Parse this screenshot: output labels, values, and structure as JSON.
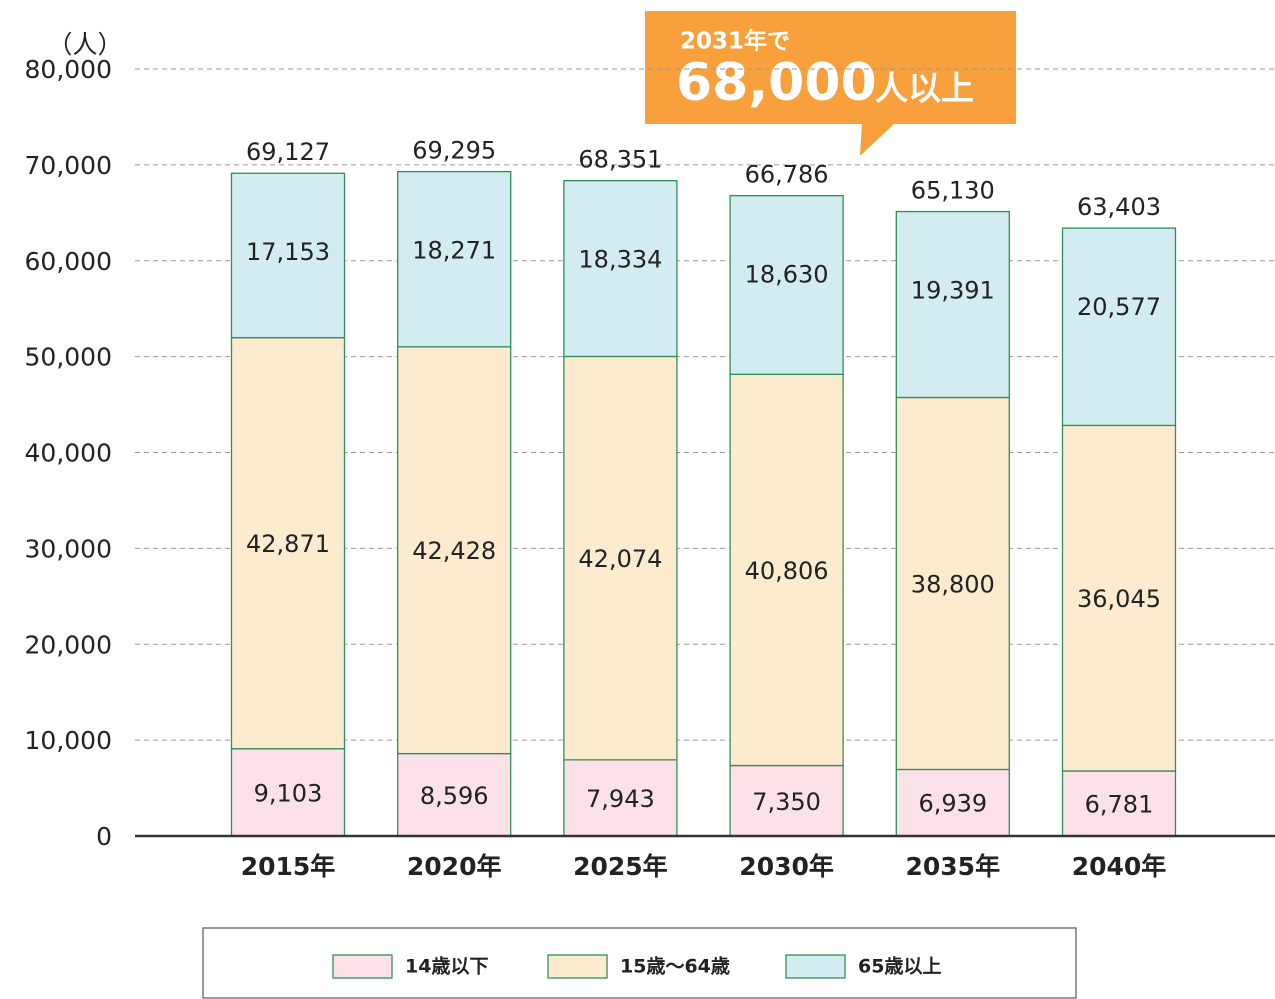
{
  "chart_data": {
    "type": "stacked_bar",
    "y_axis_label": "（人）",
    "categories": [
      "2015年",
      "2020年",
      "2025年",
      "2030年",
      "2035年",
      "2040年"
    ],
    "series": [
      {
        "name": "14歳以下",
        "color": "#fde1e8",
        "values": [
          9103,
          8596,
          7943,
          7350,
          6939,
          6781
        ],
        "value_labels": [
          "9,103",
          "8,596",
          "7,943",
          "7,350",
          "6,939",
          "6,781"
        ]
      },
      {
        "name": "15歳〜64歳",
        "color": "#fdebcf",
        "values": [
          42871,
          42428,
          42074,
          40806,
          38800,
          36045
        ],
        "value_labels": [
          "42,871",
          "42,428",
          "42,074",
          "40,806",
          "38,800",
          "36,045"
        ]
      },
      {
        "name": "65歳以上",
        "color": "#d3ecf2",
        "values": [
          17153,
          18271,
          18334,
          18630,
          19391,
          20577
        ],
        "value_labels": [
          "17,153",
          "18,271",
          "18,334",
          "18,630",
          "19,391",
          "20,577"
        ]
      }
    ],
    "totals": [
      69127,
      69295,
      68351,
      66786,
      65130,
      63403
    ],
    "total_labels": [
      "69,127",
      "69,295",
      "68,351",
      "66,786",
      "65,130",
      "63,403"
    ],
    "border_color": "#2f8f5b",
    "ylim": [
      0,
      80000
    ],
    "yticks": [
      0,
      {
        "value": 10000,
        "label": "10,000"
      },
      {
        "value": 20000,
        "label": "20,000"
      },
      {
        "value": 30000,
        "label": "30,000"
      },
      {
        "value": 40000,
        "label": "40,000"
      },
      {
        "value": 50000,
        "label": "50,000"
      },
      {
        "value": 60000,
        "label": "60,000"
      },
      {
        "value": 70000,
        "label": "70,000"
      },
      {
        "value": 80000,
        "label": "80,000"
      }
    ],
    "grid": true,
    "annotation": {
      "line1": "2031年で",
      "value_text": "68,000",
      "unit_text": "人以上",
      "color": "#f7a03c"
    },
    "legend": "bottom"
  }
}
